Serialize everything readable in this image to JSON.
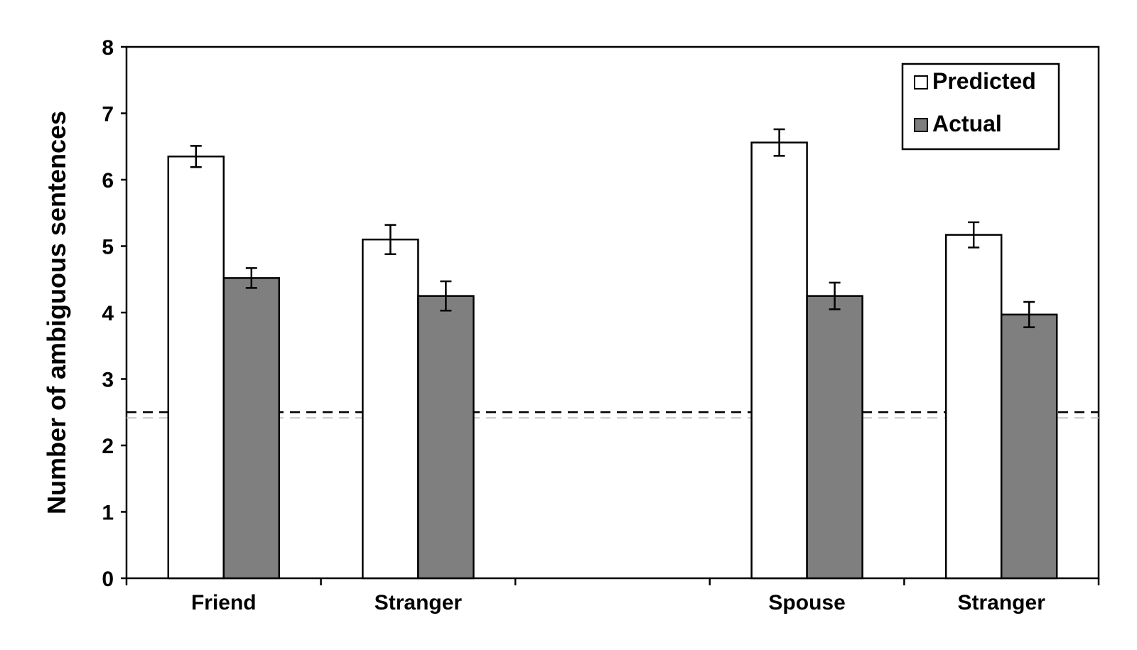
{
  "chart_data": {
    "type": "bar",
    "categories": [
      "Friend",
      "Stranger",
      "",
      "Spouse",
      "Stranger"
    ],
    "series": [
      {
        "name": "Predicted",
        "values": [
          6.35,
          5.1,
          null,
          6.56,
          5.17
        ],
        "errors": [
          0.16,
          0.22,
          null,
          0.2,
          0.19
        ],
        "color": "#ffffff"
      },
      {
        "name": "Actual",
        "values": [
          4.52,
          4.25,
          null,
          4.25,
          3.97
        ],
        "errors": [
          0.15,
          0.22,
          null,
          0.2,
          0.19
        ],
        "color": "#7f7f7f"
      }
    ],
    "ylabel": "Number of ambiguous sentences",
    "xlabel": "",
    "ylim": [
      0,
      8
    ],
    "yticks": [
      "0",
      "1",
      "2",
      "3",
      "4",
      "5",
      "6",
      "7",
      "8"
    ],
    "reference_line": {
      "value": 2.5,
      "style": "dashed"
    },
    "legend_position": "top-right",
    "grid": false
  }
}
